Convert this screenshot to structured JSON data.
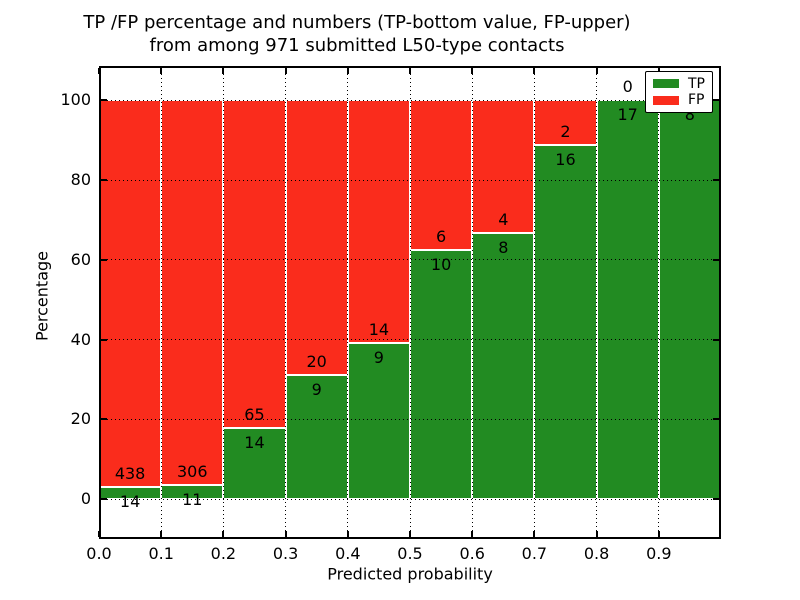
{
  "chart_data": {
    "type": "bar",
    "stacked": true,
    "units": "percent",
    "title_lines": [
      "TP /FP percentage and numbers (TP-bottom value, FP-upper)",
      "from among 971 submitted L50-type contacts"
    ],
    "total_contacts": 971,
    "xlabel": "Predicted probability",
    "ylabel": "Percentage",
    "bin_edges": [
      0.0,
      0.1,
      0.2,
      0.3,
      0.4,
      0.5,
      0.6,
      0.7,
      0.8,
      0.9,
      1.0
    ],
    "series": [
      {
        "name": "TP",
        "color": "#228b22",
        "counts": [
          14,
          11,
          14,
          9,
          9,
          10,
          8,
          16,
          17,
          8
        ]
      },
      {
        "name": "FP",
        "color": "#fa2c1c",
        "counts": [
          438,
          306,
          65,
          20,
          14,
          6,
          4,
          2,
          0,
          0
        ]
      }
    ],
    "tp_percent_per_bin": [
      3.1,
      3.5,
      17.7,
      31.0,
      39.1,
      62.5,
      66.7,
      88.9,
      100.0,
      100.0
    ],
    "xticks": [
      "0.0",
      "0.1",
      "0.2",
      "0.3",
      "0.4",
      "0.5",
      "0.6",
      "0.7",
      "0.8",
      "0.9"
    ],
    "yticks": [
      0,
      20,
      40,
      60,
      80,
      100
    ],
    "xlim": [
      0.0,
      1.0
    ],
    "ylim": [
      -10.0,
      108.6
    ],
    "grid": true,
    "grid_style": "dotted",
    "legend": {
      "position": "upper-right",
      "entries": [
        "TP",
        "FP"
      ]
    }
  }
}
